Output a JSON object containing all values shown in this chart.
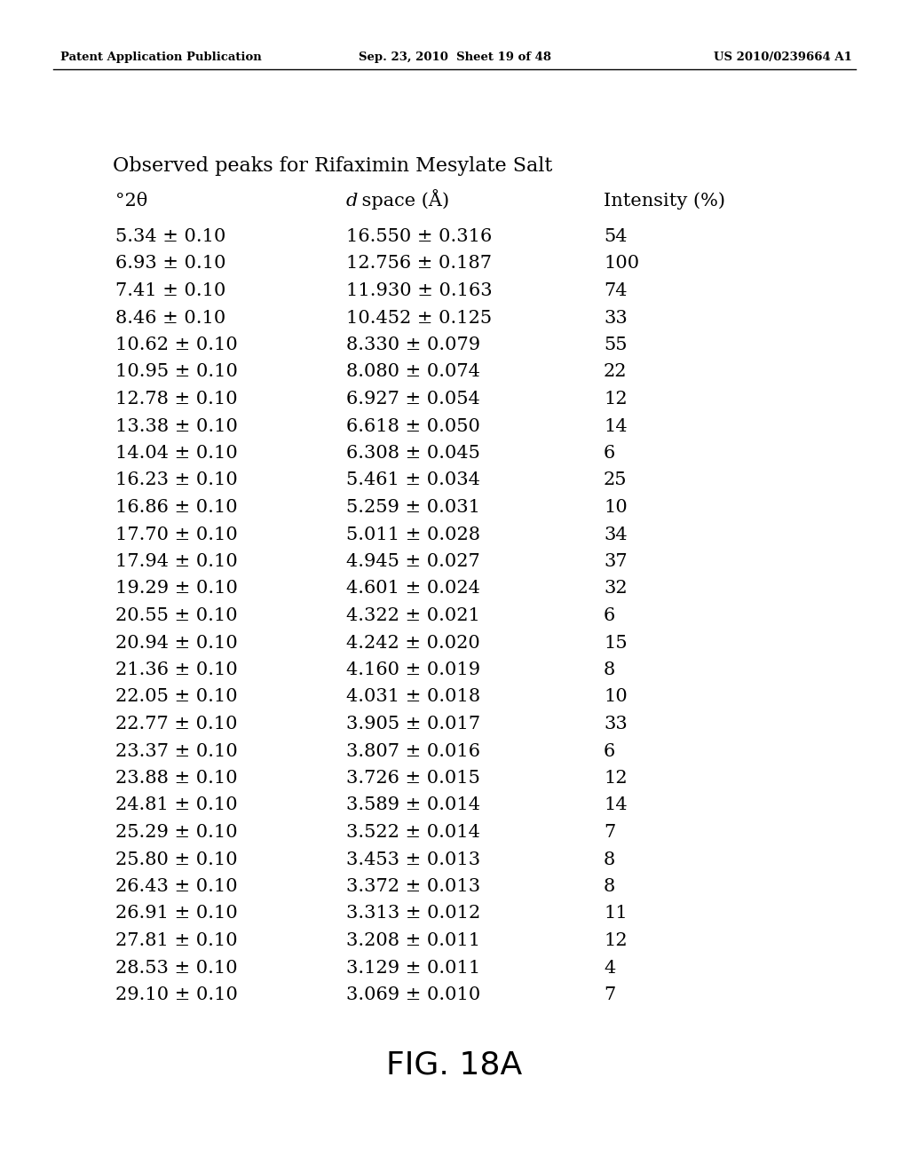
{
  "header_left": "Patent Application Publication",
  "header_center": "Sep. 23, 2010  Sheet 19 of 48",
  "header_right": "US 2010/0239664 A1",
  "title": "Observed peaks for Rifaximin Mesylate Salt",
  "col_headers": [
    "°2θ",
    "d space (Å)",
    "Intensity (%)"
  ],
  "rows": [
    [
      "5.34 ± 0.10",
      "16.550 ± 0.316",
      "54"
    ],
    [
      "6.93 ± 0.10",
      "12.756 ± 0.187",
      "100"
    ],
    [
      "7.41 ± 0.10",
      "11.930 ± 0.163",
      "74"
    ],
    [
      "8.46 ± 0.10",
      "10.452 ± 0.125",
      "33"
    ],
    [
      "10.62 ± 0.10",
      "8.330 ± 0.079",
      "55"
    ],
    [
      "10.95 ± 0.10",
      "8.080 ± 0.074",
      "22"
    ],
    [
      "12.78 ± 0.10",
      "6.927 ± 0.054",
      "12"
    ],
    [
      "13.38 ± 0.10",
      "6.618 ± 0.050",
      "14"
    ],
    [
      "14.04 ± 0.10",
      "6.308 ± 0.045",
      "6"
    ],
    [
      "16.23 ± 0.10",
      "5.461 ± 0.034",
      "25"
    ],
    [
      "16.86 ± 0.10",
      "5.259 ± 0.031",
      "10"
    ],
    [
      "17.70 ± 0.10",
      "5.011 ± 0.028",
      "34"
    ],
    [
      "17.94 ± 0.10",
      "4.945 ± 0.027",
      "37"
    ],
    [
      "19.29 ± 0.10",
      "4.601 ± 0.024",
      "32"
    ],
    [
      "20.55 ± 0.10",
      "4.322 ± 0.021",
      "6"
    ],
    [
      "20.94 ± 0.10",
      "4.242 ± 0.020",
      "15"
    ],
    [
      "21.36 ± 0.10",
      "4.160 ± 0.019",
      "8"
    ],
    [
      "22.05 ± 0.10",
      "4.031 ± 0.018",
      "10"
    ],
    [
      "22.77 ± 0.10",
      "3.905 ± 0.017",
      "33"
    ],
    [
      "23.37 ± 0.10",
      "3.807 ± 0.016",
      "6"
    ],
    [
      "23.88 ± 0.10",
      "3.726 ± 0.015",
      "12"
    ],
    [
      "24.81 ± 0.10",
      "3.589 ± 0.014",
      "14"
    ],
    [
      "25.29 ± 0.10",
      "3.522 ± 0.014",
      "7"
    ],
    [
      "25.80 ± 0.10",
      "3.453 ± 0.013",
      "8"
    ],
    [
      "26.43 ± 0.10",
      "3.372 ± 0.013",
      "8"
    ],
    [
      "26.91 ± 0.10",
      "3.313 ± 0.012",
      "11"
    ],
    [
      "27.81 ± 0.10",
      "3.208 ± 0.011",
      "12"
    ],
    [
      "28.53 ± 0.10",
      "3.129 ± 0.011",
      "4"
    ],
    [
      "29.10 ± 0.10",
      "3.069 ± 0.010",
      "7"
    ]
  ],
  "fig_label": "FIG. 18A",
  "background_color": "#ffffff",
  "text_color": "#000000",
  "font_size_header": 9.5,
  "font_size_title": 16,
  "font_size_col_header": 15,
  "font_size_data": 15,
  "font_size_fig": 26
}
